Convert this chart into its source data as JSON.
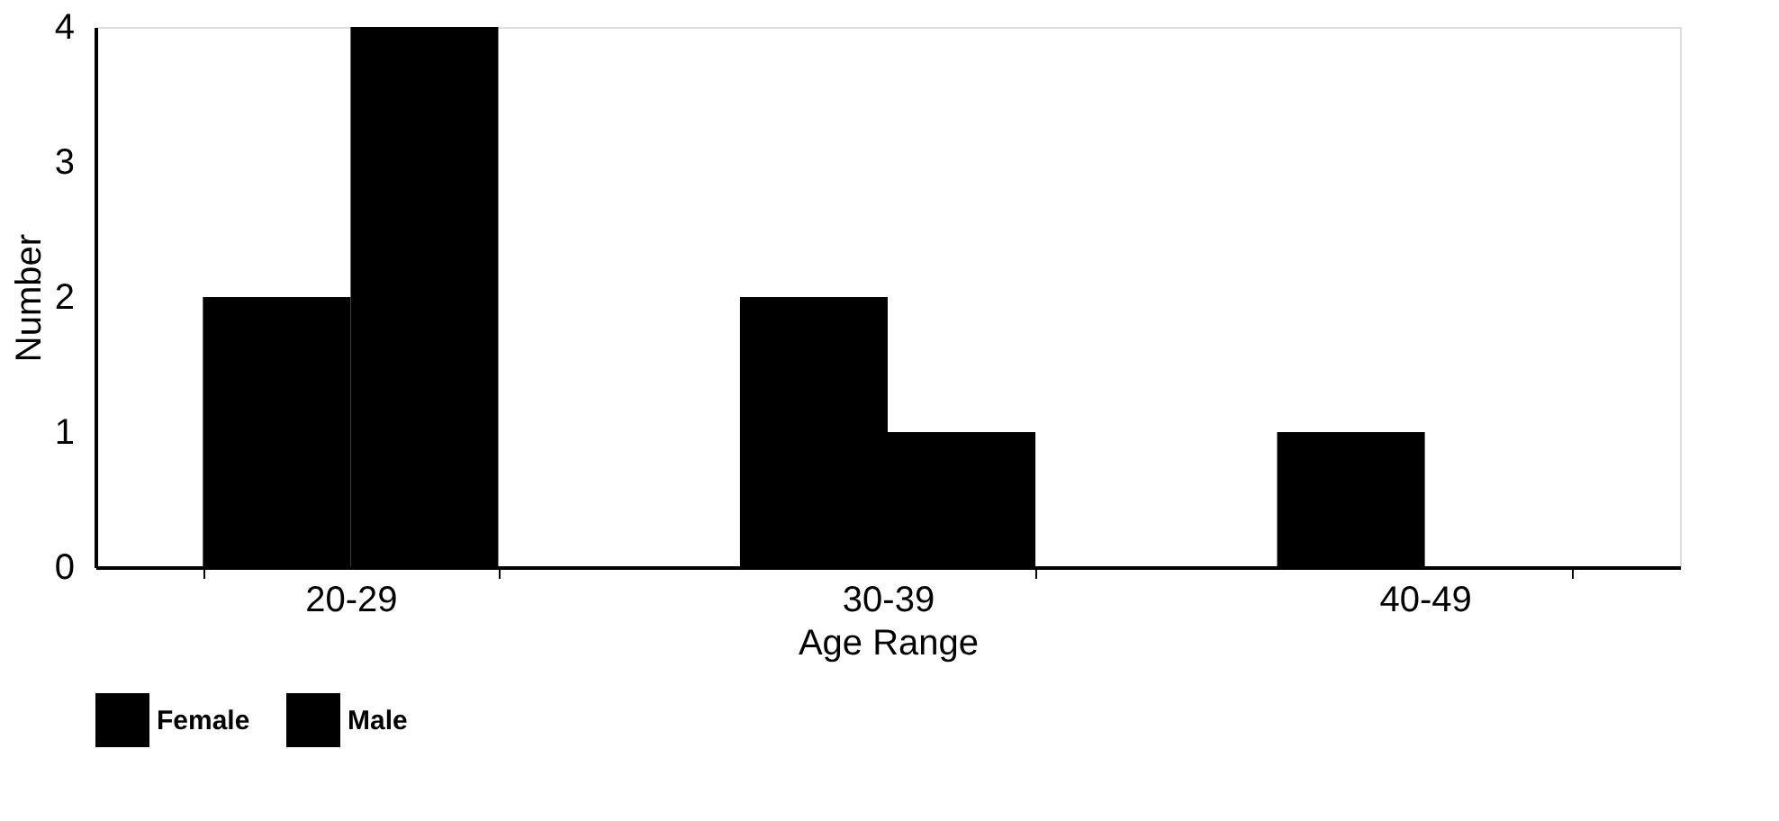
{
  "chart_data": {
    "type": "bar",
    "xlabel": "Age Range",
    "ylabel": "Number",
    "categories": [
      "20-29",
      "30-39",
      "40-49"
    ],
    "series": [
      {
        "name": "Female",
        "color": "#000000",
        "values": [
          2,
          2,
          1
        ]
      },
      {
        "name": "Male",
        "color": "#000000",
        "values": [
          4,
          1,
          0
        ]
      }
    ],
    "ylim": [
      0,
      4
    ],
    "yticks": [
      0,
      1,
      2,
      3,
      4
    ],
    "grid": false,
    "legend": "bottom"
  }
}
